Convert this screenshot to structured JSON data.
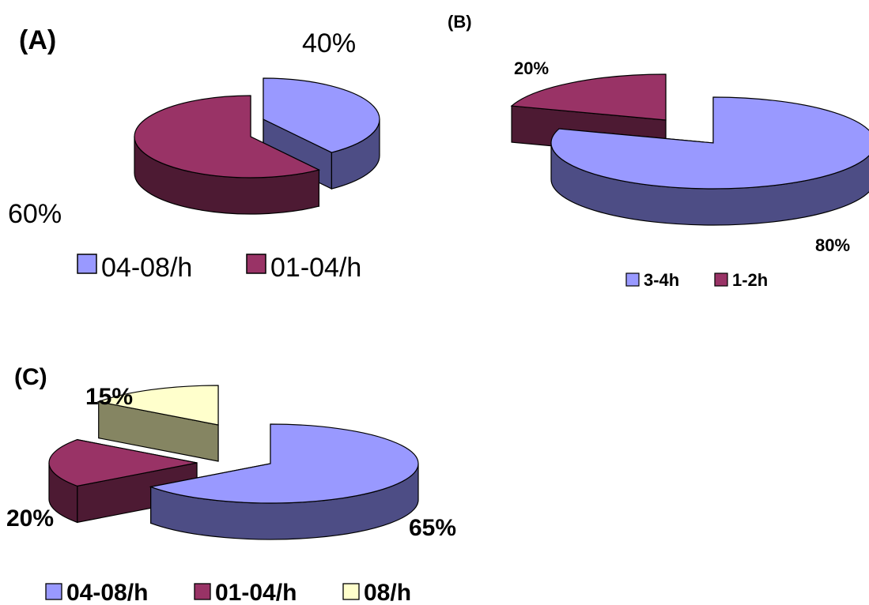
{
  "colors": {
    "blue": "#9999FF",
    "blue_side": "#4D4D85",
    "maroon": "#993366",
    "maroon_side": "#4D1A33",
    "cream": "#FFFFCC",
    "cream_side": "#858562",
    "outline": "#000000"
  },
  "chart_data": [
    {
      "type": "pie",
      "panel_label": "(A)",
      "categories": [
        "04-08/h",
        "01-04/h"
      ],
      "values": [
        40,
        60
      ],
      "data_labels": [
        "40%",
        "60%"
      ],
      "legend": [
        "04-08/h",
        "01-04/h"
      ],
      "legend_position": "bottom",
      "style": "3d-exploded"
    },
    {
      "type": "pie",
      "panel_label": "(B)",
      "categories": [
        "3-4h",
        "1-2h"
      ],
      "values": [
        80,
        20
      ],
      "data_labels": [
        "80%",
        "20%"
      ],
      "legend": [
        "3-4h",
        "1-2h"
      ],
      "legend_position": "bottom",
      "style": "3d-exploded"
    },
    {
      "type": "pie",
      "panel_label": "(C)",
      "categories": [
        "04-08/h",
        "01-04/h",
        "08/h"
      ],
      "values": [
        65,
        20,
        15
      ],
      "data_labels": [
        "65%",
        "20%",
        "15%"
      ],
      "legend": [
        "04-08/h",
        "01-04/h",
        "08/h"
      ],
      "legend_position": "bottom",
      "style": "3d-exploded"
    }
  ]
}
